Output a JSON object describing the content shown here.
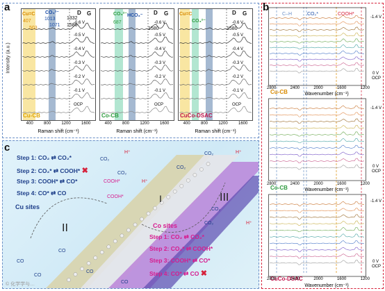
{
  "figure": {
    "panel_a": {
      "letter": "a",
      "ylabel": "Intensity (a.u.)",
      "xlabel": "Raman shift (cm⁻¹)",
      "xticks": [
        "400",
        "800",
        "1200",
        "1600"
      ],
      "subplots": [
        {
          "name": "Cu-CB",
          "annotations": [
            "Cu=C",
            "407",
            "503",
            "CO₃²⁻",
            "1013",
            "1071",
            "1332",
            "1580",
            "D",
            "G"
          ],
          "potentials": [
            "-0.6 V",
            "-0.5 V",
            "-0.4 V",
            "-0.3 V",
            "-0.2 V",
            "-0.1 V",
            "OCP"
          ],
          "label_color": "#e0a400"
        },
        {
          "name": "Co-CB",
          "annotations": [
            "CO₃²⁻",
            "687",
            "HCO₃⁻",
            "D",
            "G",
            "1580"
          ],
          "potentials": [
            "-0.6 V",
            "-0.5 V",
            "-0.4 V",
            "-0.3 V",
            "-0.2 V",
            "-0.1 V",
            "OCP"
          ],
          "label_color": "#2e9b3e"
        },
        {
          "name": "CuCo-DSAC",
          "annotations": [
            "Cu=C",
            "CO₃²⁻",
            "D",
            "G",
            "1580"
          ],
          "potentials": [
            "-0.6 V",
            "-0.5 V",
            "-0.4 V",
            "-0.3 V",
            "-0.2 V",
            "-0.1 V",
            "OCP"
          ],
          "label_color": "#c0144b"
        }
      ]
    },
    "panel_b": {
      "letter": "b",
      "headers": [
        "C–H",
        "CO₂*",
        "COOH*"
      ],
      "xlabel": "Wavenumber (cm⁻¹)",
      "xticks": [
        "2800",
        "2400",
        "2000",
        "1600",
        "1200"
      ],
      "subplots": [
        {
          "name": "Cu-CB",
          "top": "-1.4 V",
          "bottom": [
            "0 V",
            "OCP"
          ],
          "label_color": "#d98a00"
        },
        {
          "name": "Co-CB",
          "top": "-1.4 V",
          "bottom": [
            "0 V",
            "OCP"
          ],
          "label_color": "#2e9b3e"
        },
        {
          "name": "CuCo-DSAC",
          "top": "-1.4 V",
          "bottom": [
            "0 V",
            "OCP"
          ],
          "label_color": "#c0144b"
        }
      ]
    },
    "panel_c": {
      "letter": "c",
      "cu_steps": [
        "Step 1: CO₂ ⇄ CO₂*",
        "Step 2: CO₂* ⇄ COOH*",
        "Step 3: COOH* ⇄ CO*",
        "Step 4: CO* ⇄ CO"
      ],
      "co_steps": [
        "Step 1: CO₂ ⇄ CO₂*",
        "Step 2: CO₂* ⇄ COOH*",
        "Step 3: COOH* ⇄ CO*",
        "Step 4: CO* ⇄ CO"
      ],
      "cu_sites": "Cu sites",
      "co_sites": "Co sites",
      "regions": [
        "II",
        "I",
        "III"
      ],
      "species": [
        "CO",
        "CO₂",
        "H⁺",
        "COOH*"
      ]
    },
    "colors": {
      "frame": "#6a8fc7",
      "yellow_band": "#f6dc7a",
      "blue_band": "#8ea7c6",
      "green_band": "#9fe0c5",
      "orange": "#d98a00",
      "red": "#d6223b",
      "magenta": "#d61c8e",
      "blue_text": "#1e4fa8"
    },
    "watermark": "© 化学学与…"
  }
}
